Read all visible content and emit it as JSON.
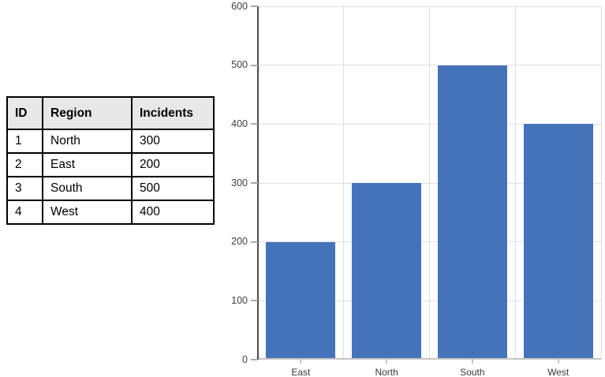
{
  "table": {
    "columns": [
      "ID",
      "Region",
      "Incidents"
    ],
    "rows": [
      [
        "1",
        "North",
        "300"
      ],
      [
        "2",
        "East",
        "200"
      ],
      [
        "3",
        "South",
        "500"
      ],
      [
        "4",
        "West",
        "400"
      ]
    ]
  },
  "chart_data": {
    "type": "bar",
    "categories": [
      "East",
      "North",
      "South",
      "West"
    ],
    "values": [
      200,
      300,
      500,
      400
    ],
    "title": "",
    "xlabel": "",
    "ylabel": "",
    "ylim": [
      0,
      600
    ],
    "ytick_step": 100,
    "ytick_labels": [
      "0",
      "100",
      "200",
      "300",
      "400",
      "500",
      "600"
    ],
    "grid": true,
    "legend": false,
    "bar_color": "#4473B9",
    "gridline_color": "#e0e0e0",
    "y_axis_color": "#4a4a4a",
    "x_axis_color": "#c5c5c5",
    "label_color": "#404040"
  }
}
